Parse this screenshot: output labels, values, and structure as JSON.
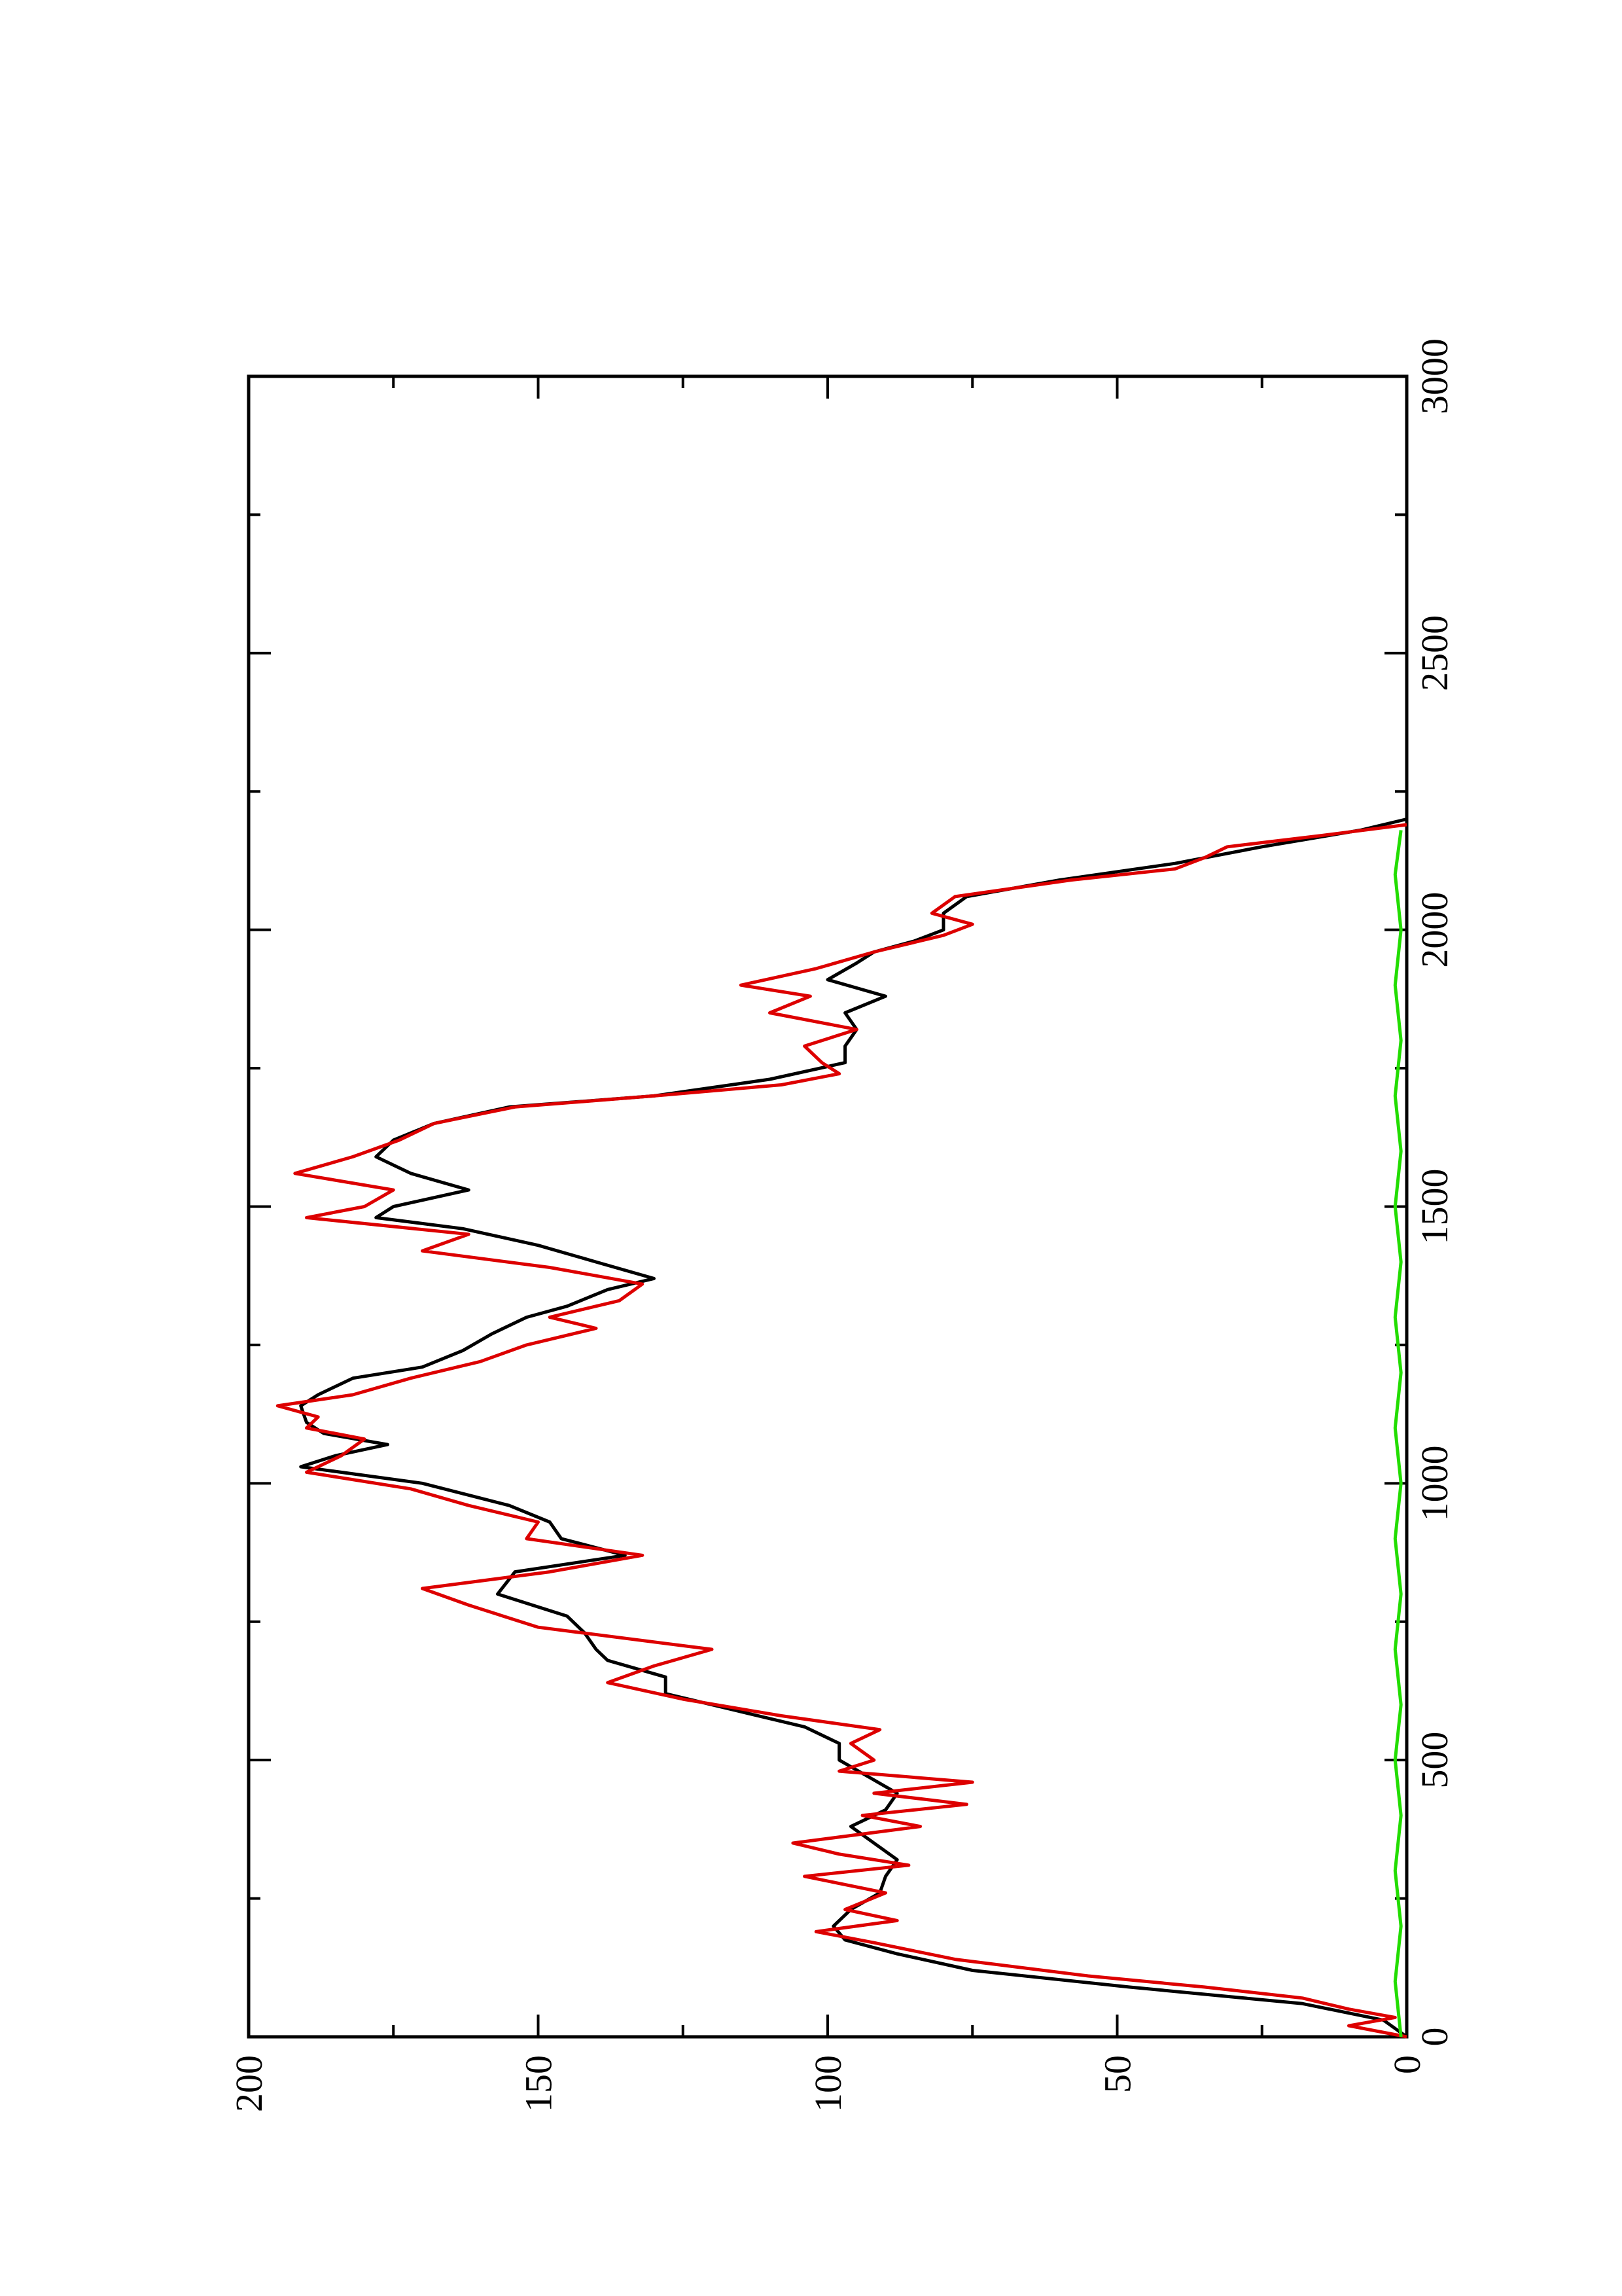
{
  "chart_data": {
    "type": "line",
    "title": "",
    "xlabel": "",
    "ylabel": "",
    "xlim": [
      0,
      3000
    ],
    "ylim": [
      0,
      200
    ],
    "x_ticks": [
      "0",
      "500",
      "1000",
      "1500",
      "2000",
      "2500",
      "3000"
    ],
    "y_ticks": [
      "0",
      "50",
      "100",
      "150",
      "200"
    ],
    "grid": false,
    "legend": "none",
    "orientation": "rotated-90-counterclockwise",
    "series": [
      {
        "color": "#000000",
        "points": [
          [
            0,
            0
          ],
          [
            30,
            4
          ],
          [
            60,
            18
          ],
          [
            90,
            48
          ],
          [
            120,
            75
          ],
          [
            150,
            88
          ],
          [
            175,
            97
          ],
          [
            200,
            99
          ],
          [
            230,
            96
          ],
          [
            260,
            91
          ],
          [
            290,
            90
          ],
          [
            320,
            88
          ],
          [
            350,
            92
          ],
          [
            380,
            96
          ],
          [
            410,
            90
          ],
          [
            440,
            88
          ],
          [
            470,
            93
          ],
          [
            500,
            98
          ],
          [
            530,
            98
          ],
          [
            560,
            104
          ],
          [
            590,
            116
          ],
          [
            620,
            128
          ],
          [
            650,
            128
          ],
          [
            680,
            138
          ],
          [
            700,
            140
          ],
          [
            730,
            142
          ],
          [
            760,
            145
          ],
          [
            800,
            157
          ],
          [
            840,
            154
          ],
          [
            870,
            135
          ],
          [
            900,
            146
          ],
          [
            930,
            148
          ],
          [
            960,
            155
          ],
          [
            1000,
            170
          ],
          [
            1030,
            191
          ],
          [
            1050,
            185
          ],
          [
            1070,
            176
          ],
          [
            1090,
            187
          ],
          [
            1110,
            190
          ],
          [
            1140,
            191
          ],
          [
            1160,
            188
          ],
          [
            1190,
            182
          ],
          [
            1210,
            170
          ],
          [
            1240,
            163
          ],
          [
            1270,
            158
          ],
          [
            1300,
            152
          ],
          [
            1320,
            145
          ],
          [
            1350,
            138
          ],
          [
            1370,
            130
          ],
          [
            1400,
            140
          ],
          [
            1430,
            150
          ],
          [
            1460,
            163
          ],
          [
            1480,
            178
          ],
          [
            1500,
            175
          ],
          [
            1530,
            162
          ],
          [
            1560,
            172
          ],
          [
            1590,
            178
          ],
          [
            1620,
            175
          ],
          [
            1650,
            168
          ],
          [
            1680,
            155
          ],
          [
            1700,
            130
          ],
          [
            1730,
            110
          ],
          [
            1760,
            97
          ],
          [
            1790,
            97
          ],
          [
            1820,
            95
          ],
          [
            1850,
            97
          ],
          [
            1880,
            90
          ],
          [
            1910,
            100
          ],
          [
            1940,
            95
          ],
          [
            1960,
            92
          ],
          [
            1980,
            85
          ],
          [
            2000,
            80
          ],
          [
            2030,
            80
          ],
          [
            2060,
            76
          ],
          [
            2090,
            60
          ],
          [
            2120,
            40
          ],
          [
            2150,
            25
          ],
          [
            2180,
            8
          ],
          [
            2200,
            0
          ]
        ]
      },
      {
        "color": "#dd0000",
        "points": [
          [
            0,
            0
          ],
          [
            20,
            10
          ],
          [
            35,
            2
          ],
          [
            50,
            10
          ],
          [
            70,
            18
          ],
          [
            90,
            35
          ],
          [
            110,
            55
          ],
          [
            140,
            78
          ],
          [
            170,
            92
          ],
          [
            190,
            102
          ],
          [
            210,
            88
          ],
          [
            230,
            97
          ],
          [
            260,
            90
          ],
          [
            290,
            104
          ],
          [
            310,
            86
          ],
          [
            330,
            98
          ],
          [
            350,
            106
          ],
          [
            380,
            84
          ],
          [
            400,
            94
          ],
          [
            420,
            76
          ],
          [
            440,
            92
          ],
          [
            460,
            75
          ],
          [
            480,
            98
          ],
          [
            500,
            92
          ],
          [
            530,
            96
          ],
          [
            555,
            91
          ],
          [
            580,
            108
          ],
          [
            610,
            125
          ],
          [
            640,
            138
          ],
          [
            670,
            130
          ],
          [
            700,
            120
          ],
          [
            740,
            150
          ],
          [
            780,
            162
          ],
          [
            810,
            170
          ],
          [
            840,
            148
          ],
          [
            870,
            132
          ],
          [
            900,
            152
          ],
          [
            930,
            150
          ],
          [
            960,
            162
          ],
          [
            990,
            172
          ],
          [
            1020,
            190
          ],
          [
            1050,
            184
          ],
          [
            1080,
            180
          ],
          [
            1100,
            190
          ],
          [
            1120,
            188
          ],
          [
            1140,
            195
          ],
          [
            1160,
            182
          ],
          [
            1190,
            172
          ],
          [
            1220,
            160
          ],
          [
            1250,
            152
          ],
          [
            1280,
            140
          ],
          [
            1300,
            148
          ],
          [
            1330,
            136
          ],
          [
            1360,
            132
          ],
          [
            1390,
            148
          ],
          [
            1420,
            170
          ],
          [
            1450,
            162
          ],
          [
            1480,
            190
          ],
          [
            1500,
            180
          ],
          [
            1530,
            175
          ],
          [
            1560,
            192
          ],
          [
            1590,
            182
          ],
          [
            1620,
            174
          ],
          [
            1650,
            168
          ],
          [
            1680,
            154
          ],
          [
            1700,
            130
          ],
          [
            1720,
            108
          ],
          [
            1740,
            98
          ],
          [
            1760,
            101
          ],
          [
            1790,
            104
          ],
          [
            1820,
            95
          ],
          [
            1850,
            110
          ],
          [
            1880,
            103
          ],
          [
            1900,
            115
          ],
          [
            1930,
            102
          ],
          [
            1960,
            92
          ],
          [
            1990,
            80
          ],
          [
            2010,
            75
          ],
          [
            2030,
            82
          ],
          [
            2060,
            78
          ],
          [
            2090,
            58
          ],
          [
            2110,
            40
          ],
          [
            2130,
            35
          ],
          [
            2150,
            31
          ],
          [
            2170,
            15
          ],
          [
            2190,
            0
          ]
        ]
      },
      {
        "color": "#22dd00",
        "points": [
          [
            0,
            1
          ],
          [
            100,
            2
          ],
          [
            200,
            1
          ],
          [
            300,
            2
          ],
          [
            400,
            1
          ],
          [
            500,
            2
          ],
          [
            600,
            1
          ],
          [
            700,
            2
          ],
          [
            800,
            1
          ],
          [
            900,
            2
          ],
          [
            1000,
            1
          ],
          [
            1100,
            2
          ],
          [
            1200,
            1
          ],
          [
            1300,
            2
          ],
          [
            1400,
            1
          ],
          [
            1500,
            2
          ],
          [
            1600,
            1
          ],
          [
            1700,
            2
          ],
          [
            1800,
            1
          ],
          [
            1900,
            2
          ],
          [
            2000,
            1
          ],
          [
            2100,
            2
          ],
          [
            2180,
            1
          ]
        ]
      }
    ]
  }
}
